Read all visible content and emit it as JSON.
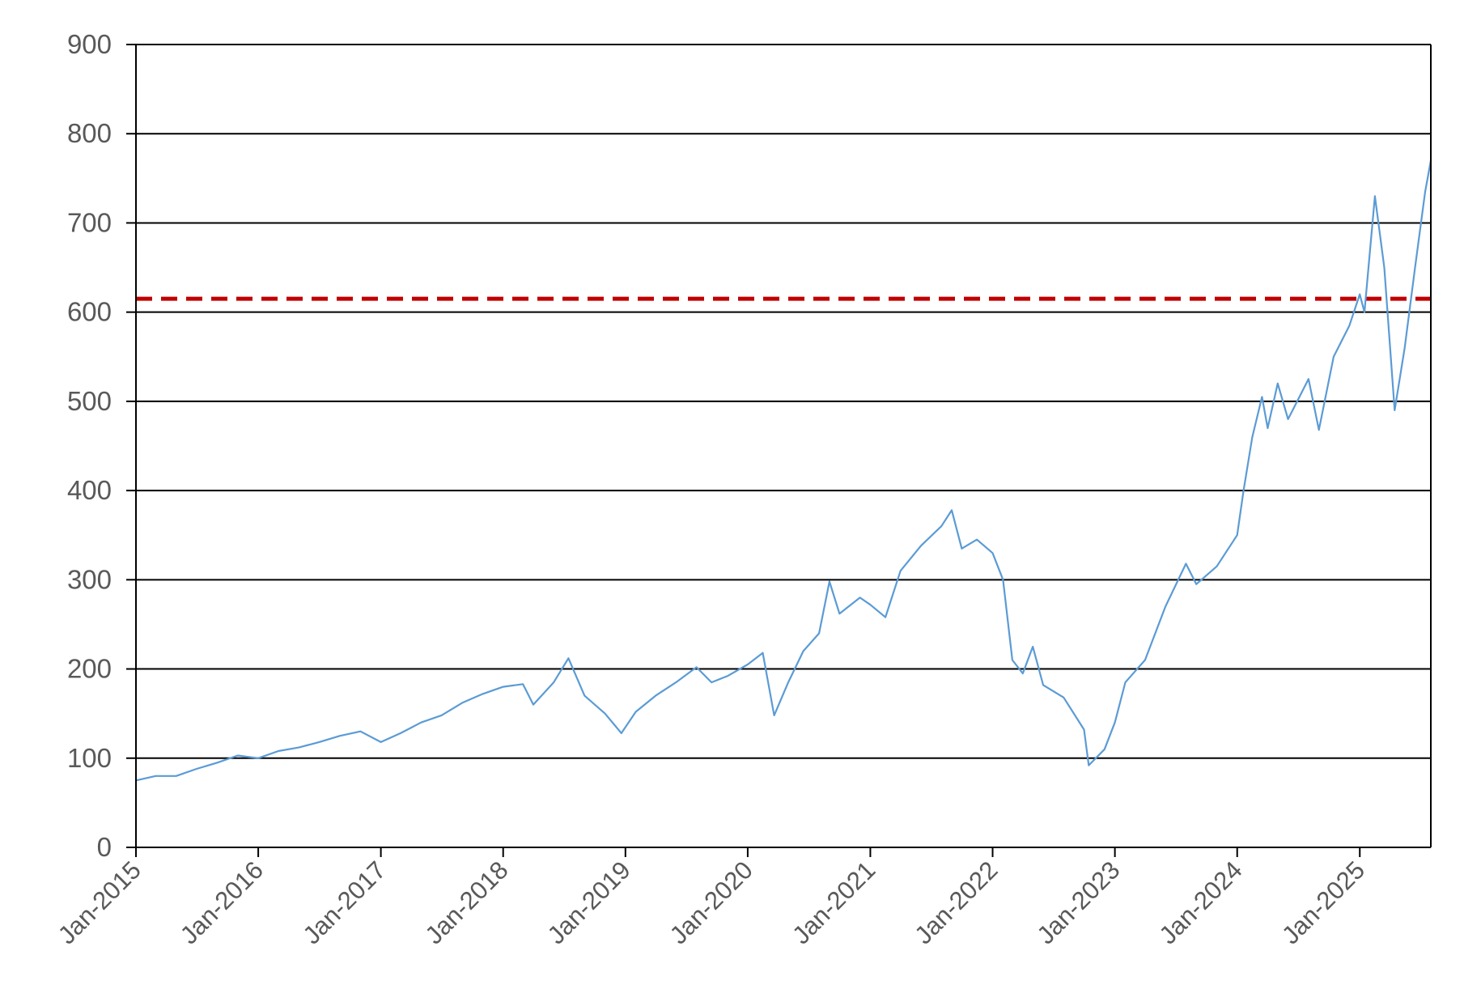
{
  "chart_data": {
    "type": "line",
    "title": "",
    "xlabel": "",
    "ylabel": "",
    "xlim": [
      "2015-01-01",
      "2025-08-01"
    ],
    "ylim": [
      0,
      900
    ],
    "y_ticks": [
      0,
      100,
      200,
      300,
      400,
      500,
      600,
      700,
      800,
      900
    ],
    "x_ticks": [
      {
        "date": "2015-01-01",
        "label": "Jan-2015"
      },
      {
        "date": "2016-01-01",
        "label": "Jan-2016"
      },
      {
        "date": "2017-01-01",
        "label": "Jan-2017"
      },
      {
        "date": "2018-01-01",
        "label": "Jan-2018"
      },
      {
        "date": "2019-01-01",
        "label": "Jan-2019"
      },
      {
        "date": "2020-01-01",
        "label": "Jan-2020"
      },
      {
        "date": "2021-01-01",
        "label": "Jan-2021"
      },
      {
        "date": "2022-01-01",
        "label": "Jan-2022"
      },
      {
        "date": "2023-01-01",
        "label": "Jan-2023"
      },
      {
        "date": "2024-01-01",
        "label": "Jan-2024"
      },
      {
        "date": "2025-01-01",
        "label": "Jan-2025"
      }
    ],
    "grid": {
      "horizontal": true,
      "vertical": false
    },
    "legend": "none",
    "reference_line": {
      "value": 615,
      "color": "#C00000",
      "style": "dashed"
    },
    "series": [
      {
        "color": "#5B9BD5",
        "points": [
          [
            "2015-01-01",
            75
          ],
          [
            "2015-03-01",
            80
          ],
          [
            "2015-05-01",
            80
          ],
          [
            "2015-07-01",
            88
          ],
          [
            "2015-09-01",
            95
          ],
          [
            "2015-11-01",
            103
          ],
          [
            "2016-01-01",
            100
          ],
          [
            "2016-03-01",
            108
          ],
          [
            "2016-05-01",
            112
          ],
          [
            "2016-07-01",
            118
          ],
          [
            "2016-09-01",
            125
          ],
          [
            "2016-11-01",
            130
          ],
          [
            "2017-01-01",
            118
          ],
          [
            "2017-03-01",
            128
          ],
          [
            "2017-05-01",
            140
          ],
          [
            "2017-07-01",
            148
          ],
          [
            "2017-09-01",
            162
          ],
          [
            "2017-11-01",
            172
          ],
          [
            "2018-01-01",
            180
          ],
          [
            "2018-03-01",
            183
          ],
          [
            "2018-04-01",
            160
          ],
          [
            "2018-06-01",
            185
          ],
          [
            "2018-07-15",
            212
          ],
          [
            "2018-09-01",
            170
          ],
          [
            "2018-11-01",
            150
          ],
          [
            "2018-12-20",
            128
          ],
          [
            "2019-02-01",
            152
          ],
          [
            "2019-04-01",
            170
          ],
          [
            "2019-06-01",
            185
          ],
          [
            "2019-08-01",
            202
          ],
          [
            "2019-09-15",
            185
          ],
          [
            "2019-11-01",
            192
          ],
          [
            "2020-01-01",
            205
          ],
          [
            "2020-02-15",
            218
          ],
          [
            "2020-03-20",
            148
          ],
          [
            "2020-05-01",
            185
          ],
          [
            "2020-06-15",
            220
          ],
          [
            "2020-08-01",
            240
          ],
          [
            "2020-09-01",
            298
          ],
          [
            "2020-10-01",
            262
          ],
          [
            "2020-12-01",
            280
          ],
          [
            "2021-01-01",
            272
          ],
          [
            "2021-02-15",
            258
          ],
          [
            "2021-04-01",
            310
          ],
          [
            "2021-06-01",
            338
          ],
          [
            "2021-08-01",
            360
          ],
          [
            "2021-09-01",
            378
          ],
          [
            "2021-10-01",
            335
          ],
          [
            "2021-11-15",
            345
          ],
          [
            "2022-01-01",
            330
          ],
          [
            "2022-02-01",
            300
          ],
          [
            "2022-03-01",
            210
          ],
          [
            "2022-04-01",
            195
          ],
          [
            "2022-05-01",
            225
          ],
          [
            "2022-06-01",
            182
          ],
          [
            "2022-08-01",
            168
          ],
          [
            "2022-10-01",
            132
          ],
          [
            "2022-10-15",
            92
          ],
          [
            "2022-12-01",
            110
          ],
          [
            "2023-01-01",
            140
          ],
          [
            "2023-02-01",
            185
          ],
          [
            "2023-04-01",
            210
          ],
          [
            "2023-06-01",
            270
          ],
          [
            "2023-08-01",
            318
          ],
          [
            "2023-09-01",
            295
          ],
          [
            "2023-11-01",
            315
          ],
          [
            "2024-01-01",
            350
          ],
          [
            "2024-01-20",
            400
          ],
          [
            "2024-02-15",
            460
          ],
          [
            "2024-03-15",
            505
          ],
          [
            "2024-04-01",
            470
          ],
          [
            "2024-05-01",
            520
          ],
          [
            "2024-06-01",
            480
          ],
          [
            "2024-08-01",
            525
          ],
          [
            "2024-09-01",
            468
          ],
          [
            "2024-10-15",
            550
          ],
          [
            "2024-12-01",
            585
          ],
          [
            "2025-01-01",
            620
          ],
          [
            "2025-01-15",
            600
          ],
          [
            "2025-02-15",
            730
          ],
          [
            "2025-03-15",
            650
          ],
          [
            "2025-04-15",
            490
          ],
          [
            "2025-05-15",
            560
          ],
          [
            "2025-06-15",
            650
          ],
          [
            "2025-07-15",
            735
          ],
          [
            "2025-08-01",
            770
          ]
        ]
      }
    ]
  }
}
